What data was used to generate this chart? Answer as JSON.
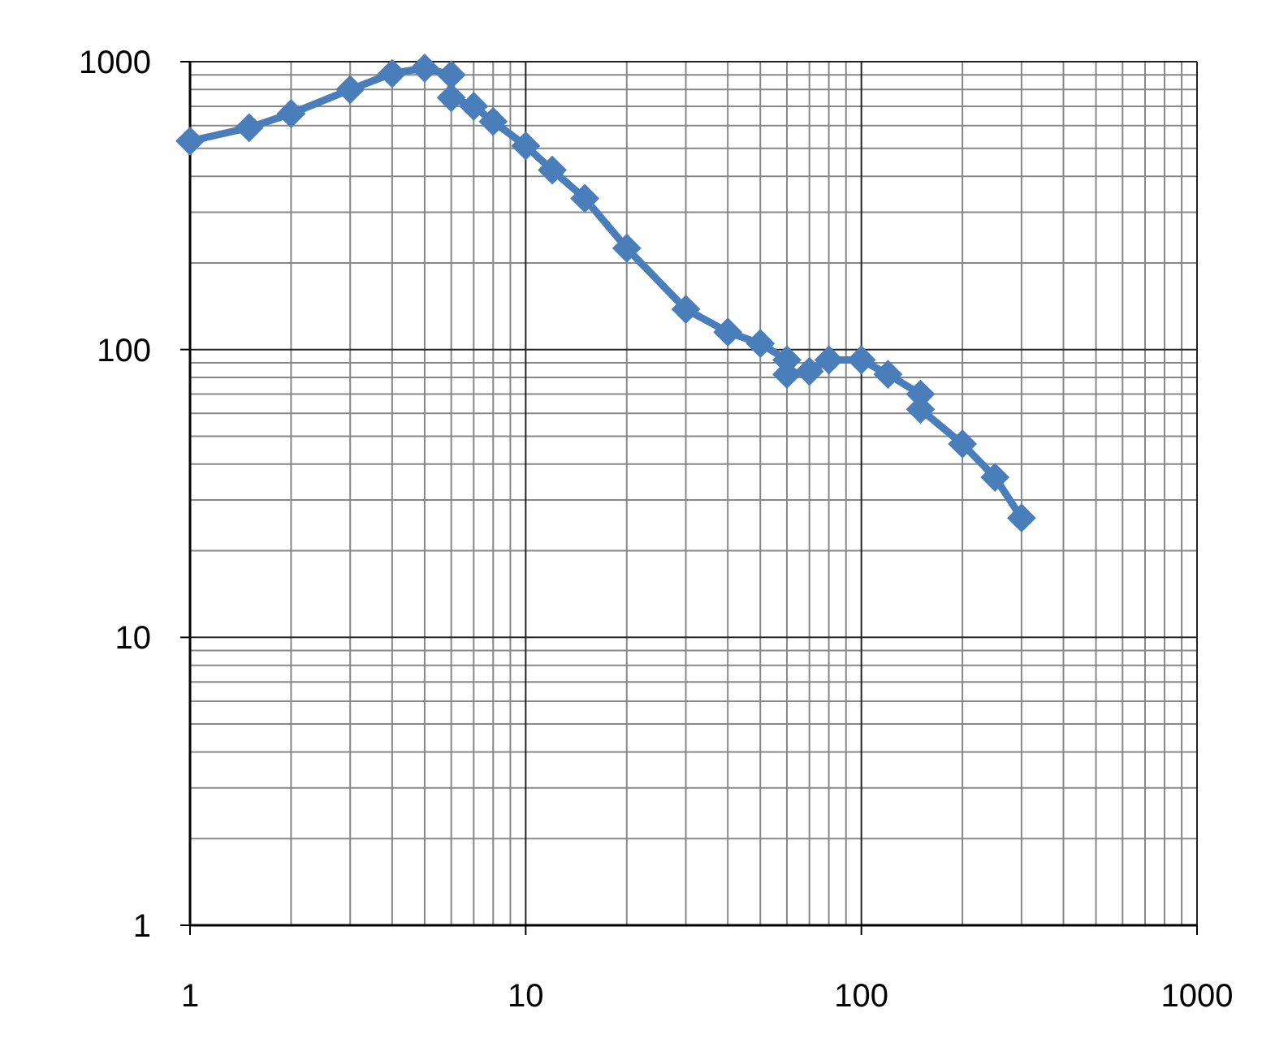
{
  "chart_data": {
    "type": "line",
    "log": "xy",
    "grid": true,
    "marker": "diamond",
    "line_style": "solid",
    "xlim": [
      1,
      1000
    ],
    "xticks": [
      1,
      10,
      100,
      1000
    ],
    "ylim": [
      1,
      1000
    ],
    "yticks": [
      1,
      10,
      100,
      1000
    ],
    "series": [
      {
        "color": "#4a7ebb",
        "x": [
          1,
          1.5,
          2,
          3,
          4,
          5,
          6,
          6,
          7,
          8,
          10,
          12,
          15,
          20,
          30,
          40,
          50,
          60,
          60,
          70,
          80,
          100,
          120,
          150,
          150,
          200,
          250,
          300
        ],
        "values": [
          530,
          590,
          660,
          800,
          910,
          950,
          900,
          750,
          700,
          620,
          510,
          420,
          335,
          225,
          138,
          115,
          105,
          92,
          82,
          84,
          92,
          92,
          82,
          70,
          62,
          47,
          36,
          26
        ]
      }
    ]
  }
}
